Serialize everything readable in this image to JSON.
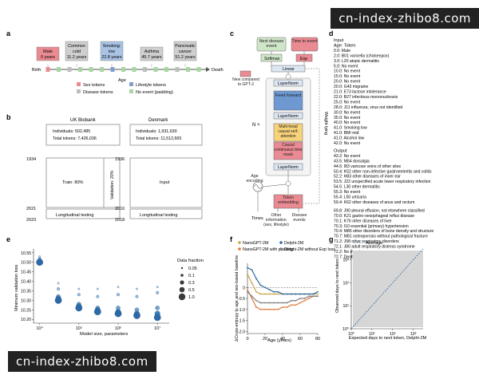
{
  "watermark": "cn-index-zhibo8.com",
  "panel_a": {
    "label": "a",
    "events": [
      {
        "l1": "Male",
        "l2": "0 years",
        "color": "#ea8a92"
      },
      {
        "l1": "Common",
        "l2": "cold",
        "l3": "11.2 years",
        "color": "#cfcfcf"
      },
      {
        "l1": "Smoking:",
        "l2": "low",
        "l3": "22.8 years",
        "color": "#a9c3e4"
      },
      {
        "l1": "Asthma",
        "l2": "45.7 years",
        "color": "#cfcfcf"
      },
      {
        "l1": "Pancreatic",
        "l2": "cancer",
        "l3": "51.2 years",
        "color": "#cfcfcf"
      }
    ],
    "birth": "Birth",
    "death": "Death",
    "axis": "Age",
    "legend": [
      {
        "label": "Sex tokens",
        "color": "#ea8a92"
      },
      {
        "label": "Lifestyle tokens",
        "color": "#7f9fcf"
      },
      {
        "label": "Disease tokens",
        "color": "#bdbdbd"
      },
      {
        "label": "No event (padding)",
        "color": "#a7d6a0"
      }
    ]
  },
  "panel_b": {
    "label": "b",
    "uk": {
      "title": "UK Biobank",
      "individuals": "Individuals: 502,485",
      "tokens": "Total tokens: 7,426,036",
      "y_top": "1934",
      "y_mid": "2021",
      "y_bot": "2023",
      "train": "Train: 80%",
      "validation": "Validation: 20%",
      "longitudinal": "Longitudinal testing"
    },
    "dk": {
      "title": "Denmark",
      "individuals": "Individuals: 1,931,630",
      "tokens": "Total tokens: 11,512,665",
      "y_top": "1936",
      "y_mid": "2016",
      "y_bot": "2018",
      "input": "Input",
      "longitudinal": "Longitudinal testing"
    }
  },
  "panel_c": {
    "label": "c",
    "next_disease": "Next disease event",
    "time_to_event": "Time to event",
    "softmax": "Softmax",
    "exp": "Exp",
    "linear": "Linear",
    "layernorm": "LayerNorm",
    "feed_forward": "Feed forward",
    "mha": "Multi-head causal self-attention",
    "causal_mask": "Causal continuous time mask",
    "n_times": "N ×",
    "age_encoding": "Age encoding",
    "token_embedding": "Token embedding",
    "weight_tying": "Weight tying",
    "new_compared": "New compared to GPT-2",
    "times": "Times",
    "other_info": "Other information (sex, lifestyle)",
    "disease_events": "Disease events"
  },
  "panel_d": {
    "label": "d",
    "input_header": "Input",
    "col_header": "Age: Token",
    "input_rows": [
      "0.0: Male",
      "2.0: B01 varicella (chickenpox)",
      "3.0: L20 atopic dermatitis",
      "5.0: No event",
      "10.0: No event",
      "15.0: No event",
      "20.0: No event",
      "20.0: G43 migraine",
      "21.0: E73 lactose intolerance",
      "22.0: B27 infectious mononucleosis",
      "25.0: No event",
      "28.0: J11 influenza, virus not identified",
      "30.0: No event",
      "35.0: No event",
      "40.0: No event",
      "41.0: Smoking low",
      "41.0: BMI mid",
      "41.0: Alcohol low",
      "42.0: No event"
    ],
    "output_header": "Output",
    "output_rows": [
      "43.2: No event",
      "43.5: M54 dorsalgia",
      "44.6: I83 varicose veins of other sites",
      "50.4: K52 other non-infective gastroenteritis and colitis",
      "52.2: H83 other diseases of inner ear",
      "53.5: J22 unspecified acute lower respiratory infection",
      "54.5: L30 other dermatitis",
      "55.3: No event",
      "55.4: L50 urticaria",
      "59.4: K62 other diseases of anus and rectum"
    ],
    "output_rows_2": [
      "69.8: J90 pleural effusion, not elsewhere classified",
      "70.0: K21 gastro-oesophageal reflux disease",
      "70.1: K76 other diseases of liver",
      "70.3: I10 essential (primary) hypertension",
      "70.4: M85 other disorders of bone density and structure",
      "70.7: M81 osteoporosis without pathological fracture",
      "71.2: J98 other respiratory disorders",
      "72.1: J80 adult respiratory distress syndrome",
      "72.2: No event",
      "72.7: Death"
    ]
  },
  "panel_e": {
    "label": "e",
    "ylabel": "Minimum validation loss",
    "xlabel": "Model size, parameters",
    "yticks": [
      "10.20",
      "10.25",
      "10.30",
      "10.35",
      "10.40",
      "10.45",
      "10.50",
      "10.55"
    ],
    "xticks": [
      "10⁴",
      "10⁵",
      "10⁶",
      "10⁷"
    ],
    "legend_title": "Data fraction",
    "legend": [
      "0.05",
      "0.1",
      "0.3",
      "0.5",
      "1.0"
    ]
  },
  "panel_f": {
    "label": "f",
    "ylabel": "ΔCross-entropy to age and sex-based baseline",
    "xlabel": "Age (years)",
    "yticks": [
      "0",
      "-0.5",
      "-1.0",
      "-1.5",
      "-2.0"
    ],
    "xticks": [
      "0",
      "20",
      "40",
      "60",
      "80"
    ],
    "legend": [
      {
        "label": "NanoGPT-2M",
        "color": "#c9a24a"
      },
      {
        "label": "NanoGPT-2M with padding",
        "color": "#e07b39"
      },
      {
        "label": "Delphi-2M",
        "color": "#2d6aa0"
      },
      {
        "label": "Delphi-2M without Exp loss",
        "color": "#7f7f7f"
      }
    ]
  },
  "panel_g": {
    "label": "g",
    "legend": "Average",
    "ylabel": "Observed days to next token",
    "xlabel": "Expected days to next token, Delphi-2M",
    "yticks": [
      "10⁰",
      "10¹",
      "10²",
      "10³"
    ],
    "xticks": [
      "10⁰",
      "10¹",
      "10²",
      "10³"
    ]
  },
  "chart_data": [
    {
      "type": "scatter",
      "title": "",
      "xlabel": "Model size, parameters",
      "ylabel": "Minimum validation loss",
      "xscale": "log",
      "xlim": [
        7000,
        20000000
      ],
      "ylim": [
        10.18,
        10.57
      ],
      "size_legend": "Data fraction",
      "series": [
        {
          "name": "0.05",
          "x": [
            10000,
            30000,
            100000,
            300000,
            1000000,
            3000000,
            10000000
          ],
          "values": [
            10.53,
            10.39,
            10.36,
            10.36,
            10.37,
            10.36,
            10.37
          ]
        },
        {
          "name": "0.1",
          "x": [
            10000,
            30000,
            100000,
            300000,
            1000000,
            3000000,
            10000000
          ],
          "values": [
            10.52,
            10.36,
            10.33,
            10.32,
            10.33,
            10.32,
            10.34
          ]
        },
        {
          "name": "0.3",
          "x": [
            10000,
            30000,
            100000,
            300000,
            1000000,
            3000000,
            10000000
          ],
          "values": [
            10.51,
            10.32,
            10.28,
            10.26,
            10.26,
            10.25,
            10.26
          ]
        },
        {
          "name": "0.5",
          "x": [
            10000,
            30000,
            100000,
            300000,
            1000000,
            3000000,
            10000000
          ],
          "values": [
            10.5,
            10.31,
            10.27,
            10.25,
            10.24,
            10.23,
            10.23
          ]
        },
        {
          "name": "1.0",
          "x": [
            10000,
            30000,
            100000,
            300000,
            1000000,
            3000000,
            10000000
          ],
          "values": [
            10.5,
            10.3,
            10.26,
            10.24,
            10.23,
            10.22,
            10.21
          ]
        }
      ]
    },
    {
      "type": "line",
      "title": "",
      "xlabel": "Age (years)",
      "ylabel": "ΔCross-entropy to age and sex-based baseline",
      "xlim": [
        0,
        80
      ],
      "ylim": [
        -2.1,
        1.1
      ],
      "x": [
        0,
        5,
        10,
        15,
        20,
        25,
        30,
        35,
        40,
        45,
        50,
        55,
        60,
        65,
        70,
        75,
        80
      ],
      "series": [
        {
          "name": "NanoGPT-2M",
          "values": [
            0.6,
            0.2,
            -0.2,
            -0.3,
            -0.3,
            -0.3,
            -0.3,
            -0.3,
            -0.3,
            -0.3,
            -0.3,
            -0.3,
            -0.3,
            -0.3,
            -0.3,
            -0.3,
            -0.3
          ]
        },
        {
          "name": "NanoGPT-2M with padding",
          "values": [
            -0.1,
            -0.5,
            -0.9,
            -1.0,
            -1.0,
            -1.0,
            -1.0,
            -1.0,
            -0.9,
            -0.9,
            -0.8,
            -0.8,
            -0.7,
            -0.6,
            -0.5,
            -0.4,
            -0.4
          ]
        },
        {
          "name": "Delphi-2M",
          "values": [
            0.9,
            0.8,
            0.4,
            0.1,
            0.0,
            -0.1,
            -0.2,
            -0.2,
            -0.3,
            -0.3,
            -0.3,
            -0.3,
            -0.3,
            -0.3,
            -0.3,
            -0.3,
            -0.2
          ]
        },
        {
          "name": "Delphi-2M without Exp loss",
          "values": [
            -0.2,
            -0.4,
            -0.6,
            -0.7,
            -0.7,
            -0.7,
            -0.7,
            -0.7,
            -0.7,
            -0.7,
            -0.6,
            -0.6,
            -0.5,
            -0.5,
            -0.4,
            -0.4,
            -0.4
          ]
        }
      ]
    },
    {
      "type": "scatter",
      "title": "",
      "xlabel": "Expected days to next token, Delphi-2M",
      "ylabel": "Observed days to next token",
      "xscale": "log",
      "yscale": "log",
      "xlim": [
        1,
        3000
      ],
      "ylim": [
        1,
        3000
      ],
      "series": [
        {
          "name": "Average",
          "x": [
            1,
            10,
            100,
            1000,
            3000
          ],
          "values": [
            1,
            10,
            100,
            1000,
            3000
          ]
        }
      ]
    }
  ]
}
